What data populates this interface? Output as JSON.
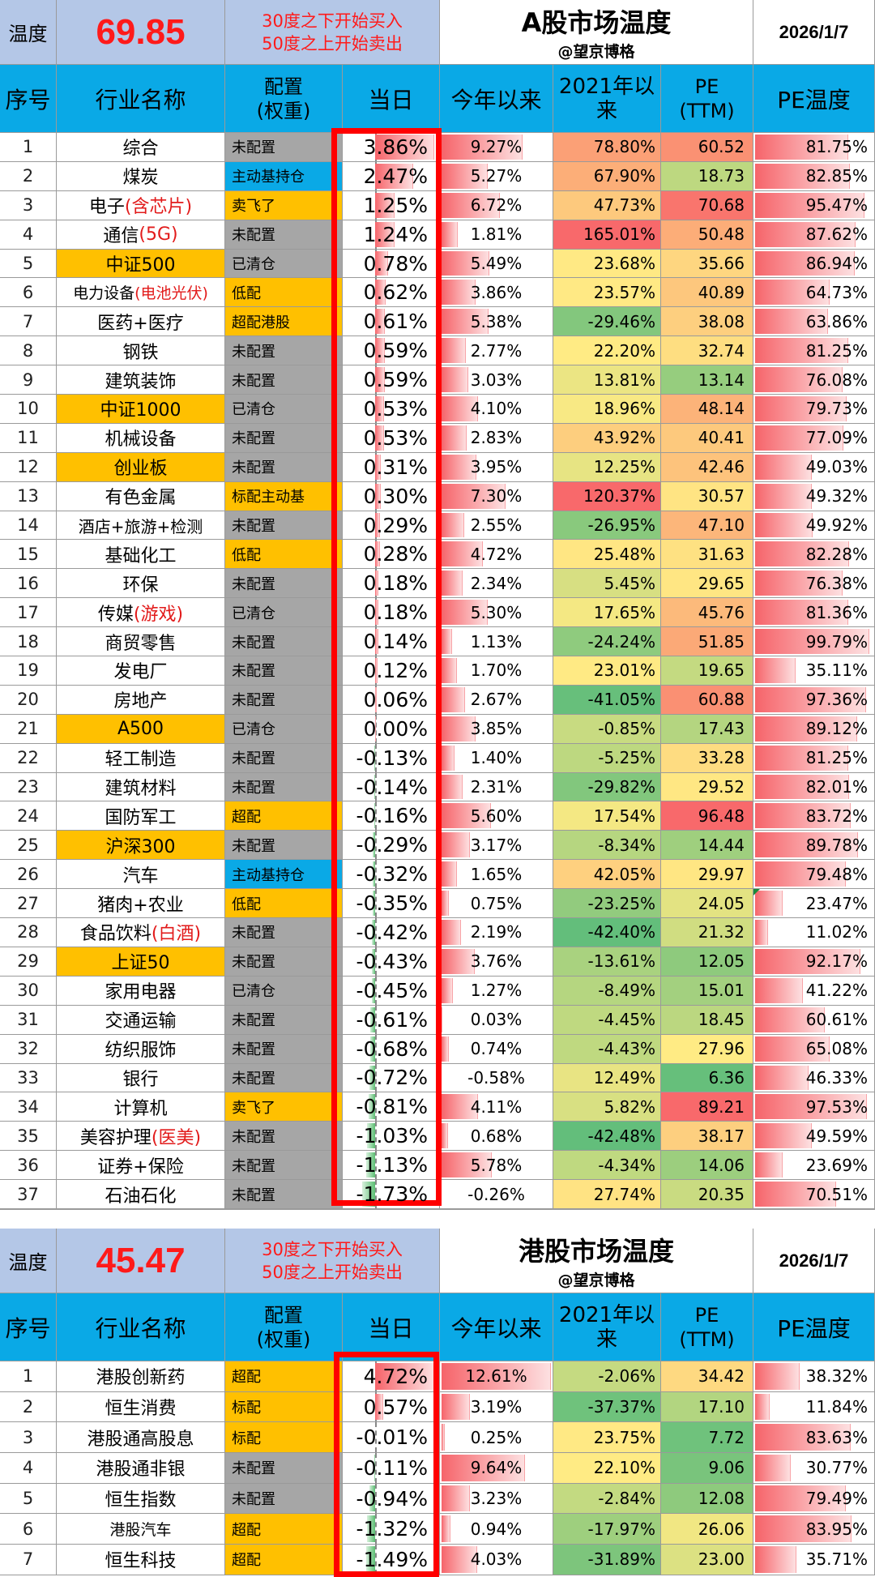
{
  "a_share": {
    "temp_label": "温度",
    "temp_value": "69.85",
    "rule_line1": "30度之下开始买入",
    "rule_line2": "50度之上开始卖出",
    "title": "A股市场温度",
    "author": "@望京博格",
    "date": "2026/1/7",
    "headers": [
      "序号",
      "行业名称",
      "配置",
      "(权重)",
      "当日",
      "今年以来",
      "2021年以",
      "来",
      "PE",
      "(TTM)",
      "PE温度"
    ],
    "rows": [
      {
        "idx": "1",
        "name": "综合",
        "name_hl": "",
        "cfg": "未配置",
        "day": "3.86%",
        "day_v": 3.86,
        "ytd": "9.27%",
        "ytd_v": 9.27,
        "since": "78.80%",
        "since_v": 78.8,
        "pe": "60.52",
        "pe_v": 60.52,
        "pet": "81.75%",
        "pet_v": 81.75
      },
      {
        "idx": "2",
        "name": "煤炭",
        "name_hl": "",
        "cfg": "主动基持仓",
        "day": "2.47%",
        "day_v": 2.47,
        "ytd": "5.27%",
        "ytd_v": 5.27,
        "since": "67.90%",
        "since_v": 67.9,
        "pe": "18.73",
        "pe_v": 18.73,
        "pet": "82.85%",
        "pet_v": 82.85
      },
      {
        "idx": "3",
        "name": "电子",
        "name_hl": "(含芯片)",
        "cfg": "卖飞了",
        "day": "1.25%",
        "day_v": 1.25,
        "ytd": "6.72%",
        "ytd_v": 6.72,
        "since": "47.73%",
        "since_v": 47.73,
        "pe": "70.68",
        "pe_v": 70.68,
        "pet": "95.47%",
        "pet_v": 95.47
      },
      {
        "idx": "4",
        "name": "通信",
        "name_hl": "(5G)",
        "cfg": "未配置",
        "day": "1.24%",
        "day_v": 1.24,
        "ytd": "1.81%",
        "ytd_v": 1.81,
        "since": "165.01%",
        "since_v": 165.01,
        "pe": "50.48",
        "pe_v": 50.48,
        "pet": "87.62%",
        "pet_v": 87.62
      },
      {
        "idx": "5",
        "name": "中证500",
        "name_hl": "",
        "cfg": "已清仓",
        "day": "0.78%",
        "day_v": 0.78,
        "ytd": "5.49%",
        "ytd_v": 5.49,
        "since": "23.68%",
        "since_v": 23.68,
        "pe": "35.66",
        "pe_v": 35.66,
        "pet": "86.94%",
        "pet_v": 86.94
      },
      {
        "idx": "6",
        "name": "电力设备",
        "name_hl": "(电池光伏)",
        "cfg": "低配",
        "day": "0.62%",
        "day_v": 0.62,
        "ytd": "3.86%",
        "ytd_v": 3.86,
        "since": "23.57%",
        "since_v": 23.57,
        "pe": "40.89",
        "pe_v": 40.89,
        "pet": "64.73%",
        "pet_v": 64.73
      },
      {
        "idx": "7",
        "name": "医药+医疗",
        "name_hl": "",
        "cfg": "超配港股",
        "day": "0.61%",
        "day_v": 0.61,
        "ytd": "5.38%",
        "ytd_v": 5.38,
        "since": "-29.46%",
        "since_v": -29.46,
        "pe": "38.08",
        "pe_v": 38.08,
        "pet": "63.86%",
        "pet_v": 63.86
      },
      {
        "idx": "8",
        "name": "钢铁",
        "name_hl": "",
        "cfg": "未配置",
        "day": "0.59%",
        "day_v": 0.59,
        "ytd": "2.77%",
        "ytd_v": 2.77,
        "since": "22.20%",
        "since_v": 22.2,
        "pe": "32.74",
        "pe_v": 32.74,
        "pet": "81.25%",
        "pet_v": 81.25
      },
      {
        "idx": "9",
        "name": "建筑装饰",
        "name_hl": "",
        "cfg": "未配置",
        "day": "0.59%",
        "day_v": 0.59,
        "ytd": "3.03%",
        "ytd_v": 3.03,
        "since": "13.81%",
        "since_v": 13.81,
        "pe": "13.14",
        "pe_v": 13.14,
        "pet": "76.08%",
        "pet_v": 76.08
      },
      {
        "idx": "10",
        "name": "中证1000",
        "name_hl": "",
        "cfg": "已清仓",
        "day": "0.53%",
        "day_v": 0.53,
        "ytd": "4.10%",
        "ytd_v": 4.1,
        "since": "18.96%",
        "since_v": 18.96,
        "pe": "48.14",
        "pe_v": 48.14,
        "pet": "79.73%",
        "pet_v": 79.73
      },
      {
        "idx": "11",
        "name": "机械设备",
        "name_hl": "",
        "cfg": "未配置",
        "day": "0.53%",
        "day_v": 0.53,
        "ytd": "2.83%",
        "ytd_v": 2.83,
        "since": "43.92%",
        "since_v": 43.92,
        "pe": "40.41",
        "pe_v": 40.41,
        "pet": "77.09%",
        "pet_v": 77.09
      },
      {
        "idx": "12",
        "name": "创业板",
        "name_hl": "",
        "cfg": "未配置",
        "day": "0.31%",
        "day_v": 0.31,
        "ytd": "3.95%",
        "ytd_v": 3.95,
        "since": "12.25%",
        "since_v": 12.25,
        "pe": "42.46",
        "pe_v": 42.46,
        "pet": "49.03%",
        "pet_v": 49.03
      },
      {
        "idx": "13",
        "name": "有色金属",
        "name_hl": "",
        "cfg": "标配主动基",
        "day": "0.30%",
        "day_v": 0.3,
        "ytd": "7.30%",
        "ytd_v": 7.3,
        "since": "120.37%",
        "since_v": 120.37,
        "pe": "30.57",
        "pe_v": 30.57,
        "pet": "49.32%",
        "pet_v": 49.32
      },
      {
        "idx": "14",
        "name": "酒店+旅游+检测",
        "name_hl": "",
        "cfg": "未配置",
        "day": "0.29%",
        "day_v": 0.29,
        "ytd": "2.55%",
        "ytd_v": 2.55,
        "since": "-26.95%",
        "since_v": -26.95,
        "pe": "47.10",
        "pe_v": 47.1,
        "pet": "49.92%",
        "pet_v": 49.92
      },
      {
        "idx": "15",
        "name": "基础化工",
        "name_hl": "",
        "cfg": "低配",
        "day": "0.28%",
        "day_v": 0.28,
        "ytd": "4.72%",
        "ytd_v": 4.72,
        "since": "25.48%",
        "since_v": 25.48,
        "pe": "31.63",
        "pe_v": 31.63,
        "pet": "82.28%",
        "pet_v": 82.28
      },
      {
        "idx": "16",
        "name": "环保",
        "name_hl": "",
        "cfg": "未配置",
        "day": "0.18%",
        "day_v": 0.18,
        "ytd": "2.34%",
        "ytd_v": 2.34,
        "since": "5.45%",
        "since_v": 5.45,
        "pe": "29.65",
        "pe_v": 29.65,
        "pet": "76.38%",
        "pet_v": 76.38
      },
      {
        "idx": "17",
        "name": "传媒",
        "name_hl": "(游戏)",
        "cfg": "已清仓",
        "day": "0.18%",
        "day_v": 0.18,
        "ytd": "5.30%",
        "ytd_v": 5.3,
        "since": "17.65%",
        "since_v": 17.65,
        "pe": "45.76",
        "pe_v": 45.76,
        "pet": "81.36%",
        "pet_v": 81.36
      },
      {
        "idx": "18",
        "name": "商贸零售",
        "name_hl": "",
        "cfg": "未配置",
        "day": "0.14%",
        "day_v": 0.14,
        "ytd": "1.13%",
        "ytd_v": 1.13,
        "since": "-24.24%",
        "since_v": -24.24,
        "pe": "51.85",
        "pe_v": 51.85,
        "pet": "99.79%",
        "pet_v": 99.79
      },
      {
        "idx": "19",
        "name": "发电厂",
        "name_hl": "",
        "cfg": "未配置",
        "day": "0.12%",
        "day_v": 0.12,
        "ytd": "1.70%",
        "ytd_v": 1.7,
        "since": "23.01%",
        "since_v": 23.01,
        "pe": "19.65",
        "pe_v": 19.65,
        "pet": "35.11%",
        "pet_v": 35.11
      },
      {
        "idx": "20",
        "name": "房地产",
        "name_hl": "",
        "cfg": "未配置",
        "day": "0.06%",
        "day_v": 0.06,
        "ytd": "2.67%",
        "ytd_v": 2.67,
        "since": "-41.05%",
        "since_v": -41.05,
        "pe": "60.88",
        "pe_v": 60.88,
        "pet": "97.36%",
        "pet_v": 97.36
      },
      {
        "idx": "21",
        "name": "A500",
        "name_hl": "",
        "cfg": "已清仓",
        "day": "0.00%",
        "day_v": 0.0,
        "ytd": "3.85%",
        "ytd_v": 3.85,
        "since": "-0.85%",
        "since_v": -0.85,
        "pe": "17.43",
        "pe_v": 17.43,
        "pet": "89.12%",
        "pet_v": 89.12
      },
      {
        "idx": "22",
        "name": "轻工制造",
        "name_hl": "",
        "cfg": "未配置",
        "day": "-0.13%",
        "day_v": -0.13,
        "ytd": "1.40%",
        "ytd_v": 1.4,
        "since": "-5.25%",
        "since_v": -5.25,
        "pe": "33.28",
        "pe_v": 33.28,
        "pet": "81.25%",
        "pet_v": 81.25
      },
      {
        "idx": "23",
        "name": "建筑材料",
        "name_hl": "",
        "cfg": "未配置",
        "day": "-0.14%",
        "day_v": -0.14,
        "ytd": "2.31%",
        "ytd_v": 2.31,
        "since": "-29.82%",
        "since_v": -29.82,
        "pe": "29.52",
        "pe_v": 29.52,
        "pet": "82.01%",
        "pet_v": 82.01
      },
      {
        "idx": "24",
        "name": "国防军工",
        "name_hl": "",
        "cfg": "超配",
        "day": "-0.16%",
        "day_v": -0.16,
        "ytd": "5.60%",
        "ytd_v": 5.6,
        "since": "17.54%",
        "since_v": 17.54,
        "pe": "96.48",
        "pe_v": 96.48,
        "pet": "83.72%",
        "pet_v": 83.72
      },
      {
        "idx": "25",
        "name": "沪深300",
        "name_hl": "",
        "cfg": "未配置",
        "day": "-0.29%",
        "day_v": -0.29,
        "ytd": "3.17%",
        "ytd_v": 3.17,
        "since": "-8.34%",
        "since_v": -8.34,
        "pe": "14.44",
        "pe_v": 14.44,
        "pet": "89.78%",
        "pet_v": 89.78
      },
      {
        "idx": "26",
        "name": "汽车",
        "name_hl": "",
        "cfg": "主动基持仓",
        "day": "-0.32%",
        "day_v": -0.32,
        "ytd": "1.65%",
        "ytd_v": 1.65,
        "since": "42.05%",
        "since_v": 42.05,
        "pe": "29.97",
        "pe_v": 29.97,
        "pet": "79.48%",
        "pet_v": 79.48
      },
      {
        "idx": "27",
        "name": "猪肉+农业",
        "name_hl": "",
        "cfg": "低配",
        "day": "-0.35%",
        "day_v": -0.35,
        "ytd": "0.75%",
        "ytd_v": 0.75,
        "since": "-23.25%",
        "since_v": -23.25,
        "pe": "24.05",
        "pe_v": 24.05,
        "pet": "23.47%",
        "pet_v": 23.47
      },
      {
        "idx": "28",
        "name": "食品饮料",
        "name_hl": "(白酒)",
        "cfg": "未配置",
        "day": "-0.42%",
        "day_v": -0.42,
        "ytd": "2.19%",
        "ytd_v": 2.19,
        "since": "-42.40%",
        "since_v": -42.4,
        "pe": "21.32",
        "pe_v": 21.32,
        "pet": "11.02%",
        "pet_v": 11.02
      },
      {
        "idx": "29",
        "name": "上证50",
        "name_hl": "",
        "cfg": "未配置",
        "day": "-0.43%",
        "day_v": -0.43,
        "ytd": "3.76%",
        "ytd_v": 3.76,
        "since": "-13.61%",
        "since_v": -13.61,
        "pe": "12.05",
        "pe_v": 12.05,
        "pet": "92.17%",
        "pet_v": 92.17
      },
      {
        "idx": "30",
        "name": "家用电器",
        "name_hl": "",
        "cfg": "已清仓",
        "day": "-0.45%",
        "day_v": -0.45,
        "ytd": "1.27%",
        "ytd_v": 1.27,
        "since": "-8.49%",
        "since_v": -8.49,
        "pe": "15.01",
        "pe_v": 15.01,
        "pet": "41.22%",
        "pet_v": 41.22
      },
      {
        "idx": "31",
        "name": "交通运输",
        "name_hl": "",
        "cfg": "未配置",
        "day": "-0.61%",
        "day_v": -0.61,
        "ytd": "0.03%",
        "ytd_v": 0.03,
        "since": "-4.45%",
        "since_v": -4.45,
        "pe": "18.45",
        "pe_v": 18.45,
        "pet": "60.61%",
        "pet_v": 60.61
      },
      {
        "idx": "32",
        "name": "纺织服饰",
        "name_hl": "",
        "cfg": "未配置",
        "day": "-0.68%",
        "day_v": -0.68,
        "ytd": "0.74%",
        "ytd_v": 0.74,
        "since": "-4.43%",
        "since_v": -4.43,
        "pe": "27.96",
        "pe_v": 27.96,
        "pet": "65.08%",
        "pet_v": 65.08
      },
      {
        "idx": "33",
        "name": "银行",
        "name_hl": "",
        "cfg": "未配置",
        "day": "-0.72%",
        "day_v": -0.72,
        "ytd": "-0.58%",
        "ytd_v": -0.58,
        "since": "12.49%",
        "since_v": 12.49,
        "pe": "6.36",
        "pe_v": 6.36,
        "pet": "46.33%",
        "pet_v": 46.33
      },
      {
        "idx": "34",
        "name": "计算机",
        "name_hl": "",
        "cfg": "卖飞了",
        "day": "-0.81%",
        "day_v": -0.81,
        "ytd": "4.11%",
        "ytd_v": 4.11,
        "since": "5.82%",
        "since_v": 5.82,
        "pe": "89.21",
        "pe_v": 89.21,
        "pet": "97.53%",
        "pet_v": 97.53
      },
      {
        "idx": "35",
        "name": "美容护理",
        "name_hl": "(医美)",
        "cfg": "未配置",
        "day": "-1.03%",
        "day_v": -1.03,
        "ytd": "0.68%",
        "ytd_v": 0.68,
        "since": "-42.48%",
        "since_v": -42.48,
        "pe": "38.17",
        "pe_v": 38.17,
        "pet": "49.59%",
        "pet_v": 49.59
      },
      {
        "idx": "36",
        "name": "证券+保险",
        "name_hl": "",
        "cfg": "未配置",
        "day": "-1.13%",
        "day_v": -1.13,
        "ytd": "5.78%",
        "ytd_v": 5.78,
        "since": "-4.34%",
        "since_v": -4.34,
        "pe": "14.06",
        "pe_v": 14.06,
        "pet": "23.69%",
        "pet_v": 23.69
      },
      {
        "idx": "37",
        "name": "石油石化",
        "name_hl": "",
        "cfg": "未配置",
        "day": "-1.73%",
        "day_v": -1.73,
        "ytd": "-0.26%",
        "ytd_v": -0.26,
        "since": "27.74%",
        "since_v": 27.74,
        "pe": "20.35",
        "pe_v": 20.35,
        "pet": "70.51%",
        "pet_v": 70.51
      }
    ]
  },
  "hk_share": {
    "temp_label": "温度",
    "temp_value": "45.47",
    "rule_line1": "30度之下开始买入",
    "rule_line2": "50度之上开始卖出",
    "title": "港股市场温度",
    "author": "@望京博格",
    "date": "2026/1/7",
    "headers": [
      "序号",
      "行业名称",
      "配置",
      "(权重)",
      "当日",
      "今年以来",
      "2021年以",
      "来",
      "PE",
      "(TTM)",
      "PE温度"
    ],
    "rows": [
      {
        "idx": "1",
        "name": "港股创新药",
        "name_hl": "",
        "cfg": "超配",
        "day": "4.72%",
        "day_v": 4.72,
        "ytd": "12.61%",
        "ytd_v": 12.61,
        "since": "-2.06%",
        "since_v": -2.06,
        "pe": "34.42",
        "pe_v": 34.42,
        "pet": "38.32%",
        "pet_v": 38.32
      },
      {
        "idx": "2",
        "name": "恒生消费",
        "name_hl": "",
        "cfg": "标配",
        "day": "0.57%",
        "day_v": 0.57,
        "ytd": "3.19%",
        "ytd_v": 3.19,
        "since": "-37.37%",
        "since_v": -37.37,
        "pe": "17.10",
        "pe_v": 17.1,
        "pet": "11.84%",
        "pet_v": 11.84
      },
      {
        "idx": "3",
        "name": "港股通高股息",
        "name_hl": "",
        "cfg": "标配",
        "day": "-0.01%",
        "day_v": -0.01,
        "ytd": "0.25%",
        "ytd_v": 0.25,
        "since": "23.75%",
        "since_v": 23.75,
        "pe": "7.72",
        "pe_v": 7.72,
        "pet": "83.63%",
        "pet_v": 83.63
      },
      {
        "idx": "4",
        "name": "港股通非银",
        "name_hl": "",
        "cfg": "未配置",
        "day": "-0.11%",
        "day_v": -0.11,
        "ytd": "9.64%",
        "ytd_v": 9.64,
        "since": "22.10%",
        "since_v": 22.1,
        "pe": "9.06",
        "pe_v": 9.06,
        "pet": "30.77%",
        "pet_v": 30.77
      },
      {
        "idx": "5",
        "name": "恒生指数",
        "name_hl": "",
        "cfg": "未配置",
        "day": "-0.94%",
        "day_v": -0.94,
        "ytd": "3.23%",
        "ytd_v": 3.23,
        "since": "-2.84%",
        "since_v": -2.84,
        "pe": "12.08",
        "pe_v": 12.08,
        "pet": "79.49%",
        "pet_v": 79.49
      },
      {
        "idx": "6",
        "name": "港股汽车",
        "name_hl": "",
        "cfg": "超配",
        "day": "-1.32%",
        "day_v": -1.32,
        "ytd": "0.94%",
        "ytd_v": 0.94,
        "since": "-17.97%",
        "since_v": -17.97,
        "pe": "26.06",
        "pe_v": 26.06,
        "pet": "83.95%",
        "pet_v": 83.95
      },
      {
        "idx": "7",
        "name": "恒生科技",
        "name_hl": "",
        "cfg": "超配",
        "day": "-1.49%",
        "day_v": -1.49,
        "ytd": "4.03%",
        "ytd_v": 4.03,
        "since": "-31.89%",
        "since_v": -31.89,
        "pe": "23.00",
        "pe_v": 23.0,
        "pet": "35.71%",
        "pet_v": 35.71
      }
    ]
  },
  "colors": {
    "header_blue": "#0aa9e6",
    "orange": "#ffc000",
    "gray": "#a6a6a6",
    "title_red": "#e21b1b",
    "box_red": "#ff0000"
  },
  "orange_names_a": [
    "5",
    "10",
    "12",
    "21",
    "25",
    "29"
  ],
  "orange_cfg_a": [
    "3",
    "6",
    "7",
    "13",
    "15",
    "24",
    "27",
    "34"
  ],
  "blue_cfg_a": [
    "2",
    "26"
  ],
  "orange_cfg_hk": [
    "1",
    "2",
    "3",
    "6",
    "7"
  ]
}
